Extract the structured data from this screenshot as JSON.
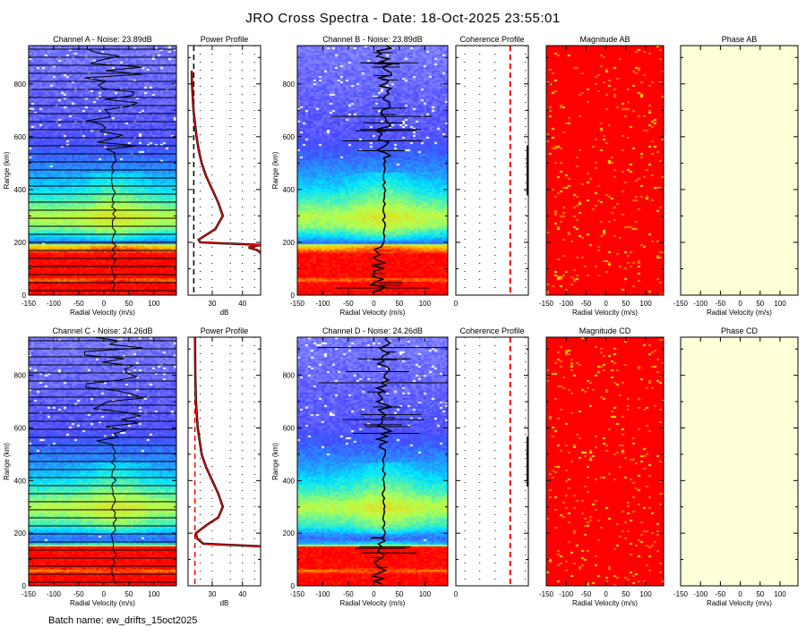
{
  "title": "JRO Cross Spectra - Date: 18-Oct-2025 23:55:01",
  "batch_label": "Batch name: ew_drifts_15oct2025",
  "colors": {
    "spectra_low": "#c8c8ff",
    "spectra_high": "#ff0000",
    "magnitude": "#ff0000",
    "phase": "#ffffd8",
    "profile": "#ff0000",
    "noise_line": "#000000"
  },
  "chart_data": [
    {
      "id": "chA",
      "type": "heatmap",
      "title": "Channel A - Noise: 23.89dB",
      "xlabel": "Radial Velocity (m/s)",
      "ylabel": "Range (km)",
      "xlim": [
        -150,
        145
      ],
      "ylim": [
        0,
        945
      ],
      "xticks": [
        "-150",
        "-100",
        "-50",
        "0",
        "50",
        "100"
      ],
      "yticks": [
        "0",
        "200",
        "400",
        "600",
        "800"
      ],
      "overlay": "spectra-lines",
      "levels": [
        [
          0,
          1.0
        ],
        [
          50,
          1.0
        ],
        [
          60,
          0.85
        ],
        [
          70,
          1.0
        ],
        [
          160,
          1.0
        ],
        [
          175,
          0.85
        ],
        [
          190,
          0.75
        ],
        [
          200,
          0.25
        ],
        [
          230,
          0.4
        ],
        [
          260,
          0.55
        ],
        [
          300,
          0.62
        ],
        [
          350,
          0.5
        ],
        [
          400,
          0.4
        ],
        [
          450,
          0.32
        ],
        [
          520,
          0.25
        ],
        [
          600,
          0.18
        ],
        [
          945,
          0.12
        ]
      ]
    },
    {
      "id": "ppA",
      "type": "line",
      "title": "Power Profile",
      "xlabel": "dB",
      "xlim": [
        22,
        46
      ],
      "ylim": [
        0,
        945
      ],
      "xticks": [
        "30",
        "40"
      ],
      "noise_db": 23.89,
      "noise_color": "#000000",
      "range": [
        160,
        170,
        180,
        190,
        200,
        210,
        250,
        300,
        350,
        400,
        450,
        500,
        550,
        600,
        700,
        800,
        850
      ],
      "power": [
        46,
        45,
        42,
        46,
        26,
        25.5,
        31,
        33.5,
        32,
        30,
        28,
        26.5,
        25.5,
        24.8,
        23.8,
        23.3,
        23.2
      ]
    },
    {
      "id": "chB",
      "type": "heatmap",
      "title": "Channel B - Noise: 23.89dB",
      "xlabel": "Radial Velocity (m/s)",
      "ylabel": "Range (km)",
      "xlim": [
        -150,
        145
      ],
      "ylim": [
        0,
        945
      ],
      "xticks": [
        "-150",
        "-100",
        "-50",
        "0",
        "50",
        "100"
      ],
      "yticks": [
        "0",
        "200",
        "400",
        "600",
        "800"
      ],
      "overlay": "doppler-errorbars",
      "levels": [
        [
          0,
          1.0
        ],
        [
          50,
          1.0
        ],
        [
          60,
          0.85
        ],
        [
          70,
          1.0
        ],
        [
          160,
          1.0
        ],
        [
          175,
          0.85
        ],
        [
          190,
          0.75
        ],
        [
          200,
          0.25
        ],
        [
          230,
          0.4
        ],
        [
          260,
          0.55
        ],
        [
          300,
          0.62
        ],
        [
          350,
          0.5
        ],
        [
          400,
          0.4
        ],
        [
          450,
          0.32
        ],
        [
          520,
          0.25
        ],
        [
          600,
          0.18
        ],
        [
          945,
          0.12
        ]
      ]
    },
    {
      "id": "coAB",
      "type": "line",
      "title": "Coherence Profile",
      "xlabel": "",
      "xticks": [
        "0"
      ],
      "reference_color": "#ff0000"
    },
    {
      "id": "magAB",
      "type": "heatmap",
      "title": "Magnitude AB",
      "xlabel": "Radial Velocity (m/s)",
      "xlim": [
        -150,
        145
      ],
      "ylim": [
        0,
        945
      ],
      "xticks": [
        "-150",
        "-100",
        "-50",
        "0",
        "50",
        "100"
      ],
      "fill": "#ff0000"
    },
    {
      "id": "phAB",
      "type": "heatmap",
      "title": "Phase AB",
      "xlabel": "Radial Velocity (m/s)",
      "xlim": [
        -150,
        145
      ],
      "ylim": [
        0,
        945
      ],
      "xticks": [
        "-150",
        "-100",
        "-50",
        "0",
        "50",
        "100"
      ],
      "fill": "#ffffd8"
    },
    {
      "id": "chC",
      "type": "heatmap",
      "title": "Channel C - Noise: 24.26dB",
      "xlabel": "Radial Velocity (m/s)",
      "ylabel": "Range (km)",
      "xlim": [
        -150,
        145
      ],
      "ylim": [
        0,
        945
      ],
      "xticks": [
        "-150",
        "-100",
        "-50",
        "0",
        "50",
        "100"
      ],
      "yticks": [
        "0",
        "200",
        "400",
        "600",
        "800"
      ],
      "overlay": "spectra-lines",
      "levels": [
        [
          0,
          1.0
        ],
        [
          50,
          1.0
        ],
        [
          60,
          0.85
        ],
        [
          70,
          1.0
        ],
        [
          150,
          1.0
        ],
        [
          160,
          0.35
        ],
        [
          180,
          0.25
        ],
        [
          200,
          0.3
        ],
        [
          230,
          0.45
        ],
        [
          300,
          0.62
        ],
        [
          350,
          0.5
        ],
        [
          400,
          0.4
        ],
        [
          450,
          0.32
        ],
        [
          520,
          0.25
        ],
        [
          600,
          0.18
        ],
        [
          945,
          0.12
        ]
      ]
    },
    {
      "id": "ppC",
      "type": "line",
      "title": "Power Profile",
      "xlabel": "dB",
      "xlim": [
        22,
        46
      ],
      "ylim": [
        0,
        945
      ],
      "xticks": [
        "30",
        "40"
      ],
      "noise_db": 24.26,
      "noise_color": "#ff0000",
      "range": [
        150,
        160,
        180,
        200,
        230,
        260,
        300,
        350,
        400,
        450,
        500,
        600,
        700,
        800,
        945
      ],
      "power": [
        46,
        27,
        25,
        24.6,
        28,
        32,
        33.5,
        32,
        30,
        28,
        26.5,
        25.2,
        24.6,
        24.4,
        24.3
      ]
    },
    {
      "id": "chD",
      "type": "heatmap",
      "title": "Channel D - Noise: 24.26dB",
      "xlabel": "Radial Velocity (m/s)",
      "ylabel": "Range (km)",
      "xlim": [
        -150,
        145
      ],
      "ylim": [
        0,
        945
      ],
      "xticks": [
        "-150",
        "-100",
        "-50",
        "0",
        "50",
        "100"
      ],
      "yticks": [
        "0",
        "200",
        "400",
        "600",
        "800"
      ],
      "overlay": "doppler-errorbars",
      "levels": [
        [
          0,
          1.0
        ],
        [
          50,
          1.0
        ],
        [
          60,
          0.85
        ],
        [
          70,
          1.0
        ],
        [
          150,
          1.0
        ],
        [
          160,
          0.35
        ],
        [
          180,
          0.25
        ],
        [
          200,
          0.3
        ],
        [
          230,
          0.45
        ],
        [
          300,
          0.62
        ],
        [
          350,
          0.5
        ],
        [
          400,
          0.4
        ],
        [
          450,
          0.32
        ],
        [
          520,
          0.25
        ],
        [
          600,
          0.18
        ],
        [
          945,
          0.12
        ]
      ]
    },
    {
      "id": "coCD",
      "type": "line",
      "title": "Coherence Profile",
      "xlabel": "",
      "xticks": [
        "0"
      ],
      "reference_color": "#ff0000"
    },
    {
      "id": "magCD",
      "type": "heatmap",
      "title": "Magnitude CD",
      "xlabel": "Radial Velocity (m/s)",
      "xlim": [
        -150,
        145
      ],
      "ylim": [
        0,
        945
      ],
      "xticks": [
        "-150",
        "-100",
        "-50",
        "0",
        "50",
        "100"
      ],
      "fill": "#ff0000"
    },
    {
      "id": "phCD",
      "type": "heatmap",
      "title": "Phase CD",
      "xlabel": "Radial Velocity (m/s)",
      "xlim": [
        -150,
        145
      ],
      "ylim": [
        0,
        945
      ],
      "xticks": [
        "-150",
        "-100",
        "-50",
        "0",
        "50",
        "100"
      ],
      "fill": "#ffffd8"
    }
  ]
}
